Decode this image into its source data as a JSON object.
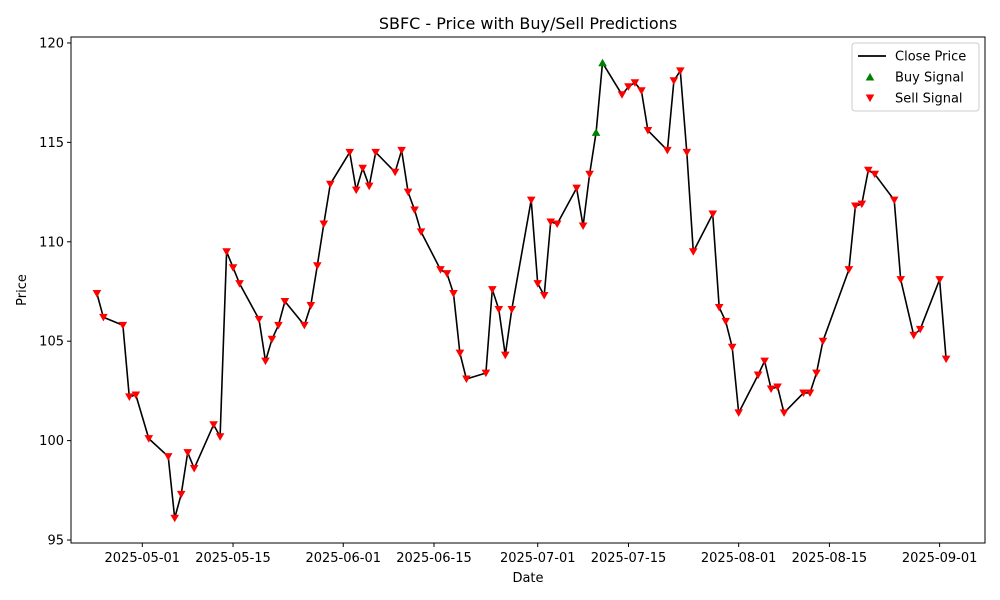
{
  "chart_data": {
    "type": "line",
    "title": "SBFC - Price with Buy/Sell Predictions",
    "xlabel": "Date",
    "ylabel": "Price",
    "ylim": [
      94.85,
      120.3
    ],
    "xlim": [
      "2025-04-20",
      "2025-09-08"
    ],
    "grid": false,
    "legend_position": "top-right",
    "x_ticks": [
      "2025-05-01",
      "2025-05-15",
      "2025-06-01",
      "2025-06-15",
      "2025-07-01",
      "2025-07-15",
      "2025-08-01",
      "2025-08-15",
      "2025-09-01"
    ],
    "y_ticks": [
      95,
      100,
      105,
      110,
      115,
      120
    ],
    "colors": {
      "line": "#000000",
      "buy": "#008000",
      "sell": "#ff0000"
    },
    "series": [
      {
        "name": "Close Price",
        "kind": "line",
        "points": [
          [
            "2025-04-24",
            107.4
          ],
          [
            "2025-04-25",
            106.2
          ],
          [
            "2025-04-28",
            105.8
          ],
          [
            "2025-04-29",
            102.2
          ],
          [
            "2025-04-30",
            102.3
          ],
          [
            "2025-05-02",
            100.1
          ],
          [
            "2025-05-05",
            99.2
          ],
          [
            "2025-05-06",
            96.1
          ],
          [
            "2025-05-07",
            97.3
          ],
          [
            "2025-05-08",
            99.4
          ],
          [
            "2025-05-09",
            98.6
          ],
          [
            "2025-05-12",
            100.8
          ],
          [
            "2025-05-13",
            100.2
          ],
          [
            "2025-05-14",
            109.5
          ],
          [
            "2025-05-15",
            108.7
          ],
          [
            "2025-05-16",
            107.9
          ],
          [
            "2025-05-19",
            106.1
          ],
          [
            "2025-05-20",
            104.0
          ],
          [
            "2025-05-21",
            105.1
          ],
          [
            "2025-05-22",
            105.8
          ],
          [
            "2025-05-23",
            107.0
          ],
          [
            "2025-05-26",
            105.8
          ],
          [
            "2025-05-27",
            106.8
          ],
          [
            "2025-05-28",
            108.8
          ],
          [
            "2025-05-29",
            110.9
          ],
          [
            "2025-05-30",
            112.9
          ],
          [
            "2025-06-02",
            114.5
          ],
          [
            "2025-06-03",
            112.6
          ],
          [
            "2025-06-04",
            113.7
          ],
          [
            "2025-06-05",
            112.8
          ],
          [
            "2025-06-06",
            114.5
          ],
          [
            "2025-06-09",
            113.5
          ],
          [
            "2025-06-10",
            114.6
          ],
          [
            "2025-06-11",
            112.5
          ],
          [
            "2025-06-12",
            111.6
          ],
          [
            "2025-06-13",
            110.5
          ],
          [
            "2025-06-16",
            108.6
          ],
          [
            "2025-06-17",
            108.4
          ],
          [
            "2025-06-18",
            107.4
          ],
          [
            "2025-06-19",
            104.4
          ],
          [
            "2025-06-20",
            103.1
          ],
          [
            "2025-06-23",
            103.4
          ],
          [
            "2025-06-24",
            107.6
          ],
          [
            "2025-06-25",
            106.6
          ],
          [
            "2025-06-26",
            104.3
          ],
          [
            "2025-06-27",
            106.6
          ],
          [
            "2025-06-30",
            112.1
          ],
          [
            "2025-07-01",
            107.9
          ],
          [
            "2025-07-02",
            107.3
          ],
          [
            "2025-07-03",
            111.0
          ],
          [
            "2025-07-04",
            110.9
          ],
          [
            "2025-07-07",
            112.7
          ],
          [
            "2025-07-08",
            110.8
          ],
          [
            "2025-07-09",
            113.4
          ],
          [
            "2025-07-10",
            115.5
          ],
          [
            "2025-07-11",
            119.0
          ],
          [
            "2025-07-14",
            117.4
          ],
          [
            "2025-07-15",
            117.8
          ],
          [
            "2025-07-16",
            118.0
          ],
          [
            "2025-07-17",
            117.6
          ],
          [
            "2025-07-18",
            115.6
          ],
          [
            "2025-07-21",
            114.6
          ],
          [
            "2025-07-22",
            118.1
          ],
          [
            "2025-07-23",
            118.6
          ],
          [
            "2025-07-24",
            114.5
          ],
          [
            "2025-07-25",
            109.5
          ],
          [
            "2025-07-28",
            111.4
          ],
          [
            "2025-07-29",
            106.7
          ],
          [
            "2025-07-30",
            106.0
          ],
          [
            "2025-07-31",
            104.7
          ],
          [
            "2025-08-01",
            101.4
          ],
          [
            "2025-08-04",
            103.3
          ],
          [
            "2025-08-05",
            104.0
          ],
          [
            "2025-08-06",
            102.6
          ],
          [
            "2025-08-07",
            102.7
          ],
          [
            "2025-08-08",
            101.4
          ],
          [
            "2025-08-11",
            102.4
          ],
          [
            "2025-08-12",
            102.4
          ],
          [
            "2025-08-13",
            103.4
          ],
          [
            "2025-08-14",
            105.0
          ],
          [
            "2025-08-18",
            108.6
          ],
          [
            "2025-08-19",
            111.8
          ],
          [
            "2025-08-20",
            111.9
          ],
          [
            "2025-08-21",
            113.6
          ],
          [
            "2025-08-22",
            113.4
          ],
          [
            "2025-08-25",
            112.1
          ],
          [
            "2025-08-26",
            108.1
          ],
          [
            "2025-08-28",
            105.3
          ],
          [
            "2025-08-29",
            105.6
          ],
          [
            "2025-09-01",
            108.1
          ],
          [
            "2025-09-02",
            104.1
          ]
        ]
      },
      {
        "name": "Buy Signal",
        "kind": "scatter",
        "marker": "triangle-up",
        "points": [
          [
            "2025-07-10",
            115.5
          ],
          [
            "2025-07-11",
            119.0
          ]
        ]
      },
      {
        "name": "Sell Signal",
        "kind": "scatter",
        "marker": "triangle-down",
        "points": [
          [
            "2025-04-24",
            107.4
          ],
          [
            "2025-04-25",
            106.2
          ],
          [
            "2025-04-28",
            105.8
          ],
          [
            "2025-04-29",
            102.2
          ],
          [
            "2025-04-30",
            102.3
          ],
          [
            "2025-05-02",
            100.1
          ],
          [
            "2025-05-05",
            99.2
          ],
          [
            "2025-05-06",
            96.1
          ],
          [
            "2025-05-07",
            97.3
          ],
          [
            "2025-05-08",
            99.4
          ],
          [
            "2025-05-09",
            98.6
          ],
          [
            "2025-05-12",
            100.8
          ],
          [
            "2025-05-13",
            100.2
          ],
          [
            "2025-05-14",
            109.5
          ],
          [
            "2025-05-15",
            108.7
          ],
          [
            "2025-05-16",
            107.9
          ],
          [
            "2025-05-19",
            106.1
          ],
          [
            "2025-05-20",
            104.0
          ],
          [
            "2025-05-21",
            105.1
          ],
          [
            "2025-05-22",
            105.8
          ],
          [
            "2025-05-23",
            107.0
          ],
          [
            "2025-05-26",
            105.8
          ],
          [
            "2025-05-27",
            106.8
          ],
          [
            "2025-05-28",
            108.8
          ],
          [
            "2025-05-29",
            110.9
          ],
          [
            "2025-05-30",
            112.9
          ],
          [
            "2025-06-02",
            114.5
          ],
          [
            "2025-06-03",
            112.6
          ],
          [
            "2025-06-04",
            113.7
          ],
          [
            "2025-06-05",
            112.8
          ],
          [
            "2025-06-06",
            114.5
          ],
          [
            "2025-06-09",
            113.5
          ],
          [
            "2025-06-10",
            114.6
          ],
          [
            "2025-06-11",
            112.5
          ],
          [
            "2025-06-12",
            111.6
          ],
          [
            "2025-06-13",
            110.5
          ],
          [
            "2025-06-16",
            108.6
          ],
          [
            "2025-06-17",
            108.4
          ],
          [
            "2025-06-18",
            107.4
          ],
          [
            "2025-06-19",
            104.4
          ],
          [
            "2025-06-20",
            103.1
          ],
          [
            "2025-06-23",
            103.4
          ],
          [
            "2025-06-24",
            107.6
          ],
          [
            "2025-06-25",
            106.6
          ],
          [
            "2025-06-26",
            104.3
          ],
          [
            "2025-06-27",
            106.6
          ],
          [
            "2025-06-30",
            112.1
          ],
          [
            "2025-07-01",
            107.9
          ],
          [
            "2025-07-02",
            107.3
          ],
          [
            "2025-07-03",
            111.0
          ],
          [
            "2025-07-04",
            110.9
          ],
          [
            "2025-07-07",
            112.7
          ],
          [
            "2025-07-08",
            110.8
          ],
          [
            "2025-07-09",
            113.4
          ],
          [
            "2025-07-14",
            117.4
          ],
          [
            "2025-07-15",
            117.8
          ],
          [
            "2025-07-16",
            118.0
          ],
          [
            "2025-07-17",
            117.6
          ],
          [
            "2025-07-18",
            115.6
          ],
          [
            "2025-07-21",
            114.6
          ],
          [
            "2025-07-22",
            118.1
          ],
          [
            "2025-07-23",
            118.6
          ],
          [
            "2025-07-24",
            114.5
          ],
          [
            "2025-07-25",
            109.5
          ],
          [
            "2025-07-28",
            111.4
          ],
          [
            "2025-07-29",
            106.7
          ],
          [
            "2025-07-30",
            106.0
          ],
          [
            "2025-07-31",
            104.7
          ],
          [
            "2025-08-01",
            101.4
          ],
          [
            "2025-08-04",
            103.3
          ],
          [
            "2025-08-05",
            104.0
          ],
          [
            "2025-08-06",
            102.6
          ],
          [
            "2025-08-07",
            102.7
          ],
          [
            "2025-08-08",
            101.4
          ],
          [
            "2025-08-11",
            102.4
          ],
          [
            "2025-08-12",
            102.4
          ],
          [
            "2025-08-13",
            103.4
          ],
          [
            "2025-08-14",
            105.0
          ],
          [
            "2025-08-18",
            108.6
          ],
          [
            "2025-08-19",
            111.8
          ],
          [
            "2025-08-20",
            111.9
          ],
          [
            "2025-08-21",
            113.6
          ],
          [
            "2025-08-22",
            113.4
          ],
          [
            "2025-08-25",
            112.1
          ],
          [
            "2025-08-26",
            108.1
          ],
          [
            "2025-08-28",
            105.3
          ],
          [
            "2025-08-29",
            105.6
          ],
          [
            "2025-09-01",
            108.1
          ],
          [
            "2025-09-02",
            104.1
          ]
        ]
      }
    ]
  }
}
